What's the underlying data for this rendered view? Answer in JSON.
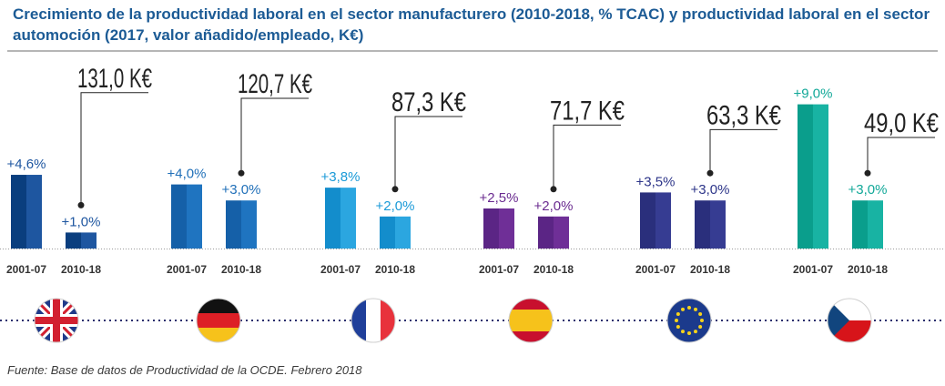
{
  "title": "Crecimiento de la productividad laboral en el sector manufacturero (2010-2018, % TCAC) y productividad laboral en el sector automoción (2017, valor añadido/empleado, K€)",
  "source": "Fuente: Base de datos de Productividad de la OCDE. Febrero 2018",
  "chart_data": {
    "type": "bar",
    "title": "Crecimiento de la productividad laboral en el sector manufacturero (2010-2018, % TCAC) y productividad laboral en el sector automoción (2017, valor añadido/empleado, K€)",
    "xlabel": "",
    "ylabel": "",
    "ylim": [
      0,
      9.0
    ],
    "grid": false,
    "legend": "none",
    "period_labels": [
      "2001-07",
      "2010-18"
    ],
    "groups": [
      {
        "flag": "united-kingdom",
        "color_dark": "#0a3e7e",
        "color_light": "#1e56a0",
        "label_color": "#1e56a0",
        "values": [
          4.6,
          1.0
        ],
        "value_labels": [
          "+4,6%",
          "+1,0%"
        ],
        "auto_label": "131,0 K€",
        "auto_value": 131.0
      },
      {
        "flag": "germany",
        "color_dark": "#1560a8",
        "color_light": "#1f74c0",
        "label_color": "#1f6fb8",
        "values": [
          4.0,
          3.0
        ],
        "value_labels": [
          "+4,0%",
          "+3,0%"
        ],
        "auto_label": "120,7 K€",
        "auto_value": 120.7
      },
      {
        "flag": "france",
        "color_dark": "#138dcc",
        "color_light": "#2ba6e0",
        "label_color": "#1a9ad8",
        "values": [
          3.8,
          2.0
        ],
        "value_labels": [
          "+3,8%",
          "+2,0%"
        ],
        "auto_label": "87,3 K€",
        "auto_value": 87.3
      },
      {
        "flag": "spain",
        "color_dark": "#5b2585",
        "color_light": "#6f2f97",
        "label_color": "#6a2b90",
        "values": [
          2.5,
          2.0
        ],
        "value_labels": [
          "+2,5%",
          "+2,0%"
        ],
        "auto_label": "71,7 K€",
        "auto_value": 71.7
      },
      {
        "flag": "european-union",
        "color_dark": "#2a2f7c",
        "color_light": "#363c92",
        "label_color": "#2d3589",
        "values": [
          3.5,
          3.0
        ],
        "value_labels": [
          "+3,5%",
          "+3,0%"
        ],
        "auto_label": "63,3 K€",
        "auto_value": 63.3
      },
      {
        "flag": "czech-republic",
        "color_dark": "#0a9e8c",
        "color_light": "#18b3a3",
        "label_color": "#11a898",
        "values": [
          9.0,
          3.0
        ],
        "value_labels": [
          "+9,0%",
          "+3,0%"
        ],
        "auto_label": "49,0 K€",
        "auto_value": 49.0
      }
    ]
  },
  "colors": {
    "title": "#1c5b95",
    "axis": "#9a9a9a",
    "dotted_rule": "#2a2f6e",
    "callout_line": "#222222"
  }
}
